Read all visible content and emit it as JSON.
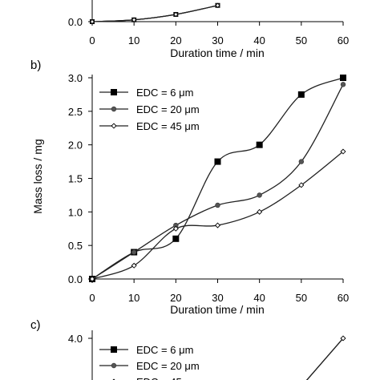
{
  "colors": {
    "series": "#222222",
    "axis": "#000000"
  },
  "chart_data": [
    {
      "panel": "a",
      "type": "line",
      "xlabel": "Duration time / min",
      "x_ticks": [
        "0",
        "10",
        "20",
        "30",
        "40",
        "50",
        "60"
      ],
      "y_ticks": [
        "0.0"
      ],
      "xlim": [
        0,
        60
      ],
      "series": [
        {
          "marker": "square",
          "x": [
            0,
            10,
            20,
            30
          ],
          "y": [
            0.0,
            0.05,
            0.2,
            0.45
          ]
        },
        {
          "marker": "circle",
          "x": [
            0,
            10,
            20,
            30
          ],
          "y": [
            0.0,
            0.05,
            0.2,
            0.45
          ]
        },
        {
          "marker": "diamond",
          "x": [
            0,
            10,
            20,
            30
          ],
          "y": [
            0.0,
            0.05,
            0.2,
            0.45
          ]
        }
      ]
    },
    {
      "panel": "b",
      "label": "b)",
      "type": "line",
      "xlabel": "Duration time / min",
      "ylabel": "Mass loss / mg",
      "xlim": [
        0,
        60
      ],
      "ylim": [
        0,
        3.0
      ],
      "x_ticks": [
        "0",
        "10",
        "20",
        "30",
        "40",
        "50",
        "60"
      ],
      "y_ticks": [
        "0.0",
        "0.5",
        "1.0",
        "1.5",
        "2.0",
        "2.5",
        "3.0"
      ],
      "legend_position": "top-left",
      "series": [
        {
          "name": "EDC = 6 μm",
          "marker": "square",
          "x": [
            0,
            10,
            20,
            30,
            40,
            50,
            60
          ],
          "y": [
            0.0,
            0.4,
            0.6,
            1.75,
            2.0,
            2.75,
            3.0
          ]
        },
        {
          "name": "EDC = 20 μm",
          "marker": "circle",
          "x": [
            0,
            10,
            20,
            30,
            40,
            50,
            60
          ],
          "y": [
            0.0,
            0.4,
            0.8,
            1.1,
            1.25,
            1.75,
            2.9
          ]
        },
        {
          "name": "EDC = 45 μm",
          "marker": "diamond",
          "x": [
            0,
            10,
            20,
            30,
            40,
            50,
            60
          ],
          "y": [
            0.0,
            0.2,
            0.75,
            0.8,
            1.0,
            1.4,
            1.9
          ]
        }
      ]
    },
    {
      "panel": "c",
      "label": "c)",
      "type": "line",
      "y_ticks": [
        "4.0"
      ],
      "legend_position": "top-left",
      "series": [
        {
          "name": "EDC = 6 μm",
          "marker": "square",
          "x": [
            50,
            60
          ],
          "y": [
            3.0,
            4.0
          ]
        },
        {
          "name": "EDC = 20 μm",
          "marker": "circle",
          "x": [
            50,
            60
          ],
          "y": [
            3.0,
            4.0
          ]
        },
        {
          "name": "EDC = 45 μm",
          "marker": "diamond",
          "x": [
            50,
            60
          ],
          "y": [
            3.0,
            4.0
          ]
        }
      ]
    }
  ]
}
